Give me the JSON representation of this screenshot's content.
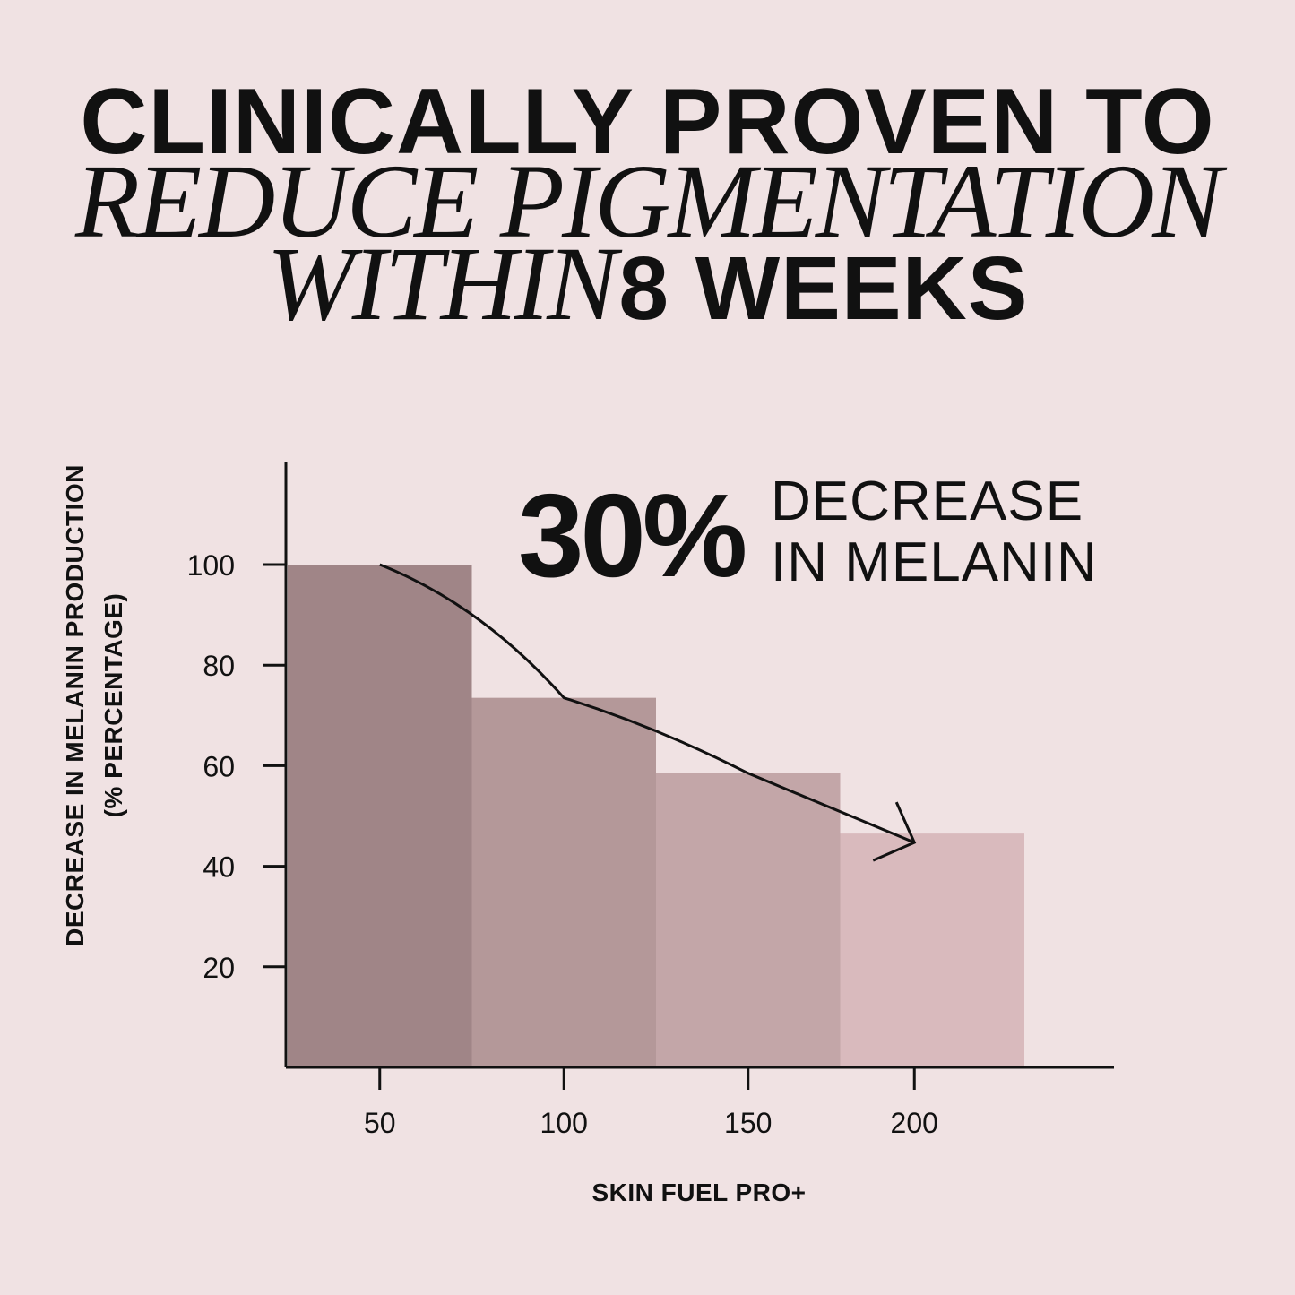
{
  "headline": {
    "line1": "CLINICALLY PROVEN TO",
    "line2": "REDUCE PIGMENTATION",
    "line3_italic": "WITHIN",
    "line3_bold": "8 WEEKS"
  },
  "colors": {
    "background": "#f0e2e3",
    "bars": [
      "#a08587",
      "#b49899",
      "#c3a6a8",
      "#d9babd"
    ],
    "ink": "#111111"
  },
  "chart_data": {
    "type": "bar",
    "categories": [
      "50",
      "100",
      "150",
      "200"
    ],
    "values": [
      100,
      73.5,
      58.5,
      46.5
    ],
    "trend_line": [
      100,
      73.5,
      58.5,
      46.5
    ],
    "xlabel": "SKIN FUEL PRO+",
    "ylabel": "DECREASE IN MELANIN PRODUCTION",
    "ylabel_sub": "(% PERCENTAGE)",
    "yticks": [
      20,
      40,
      60,
      80,
      100
    ],
    "ylim": [
      0,
      120
    ],
    "grid": false,
    "annotation": {
      "value": "30%",
      "line1": "DECREASE",
      "line2": "IN MELANIN"
    }
  }
}
